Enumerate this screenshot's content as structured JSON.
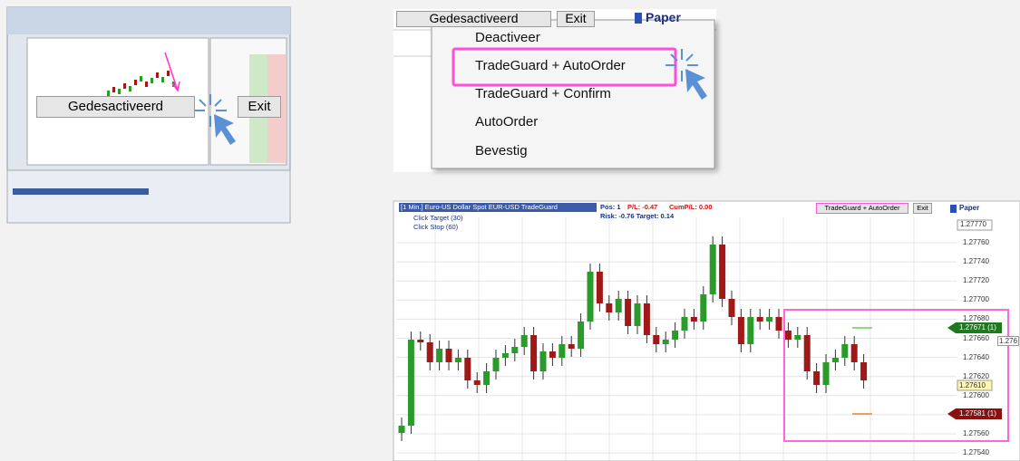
{
  "overview": {
    "button": "Gedesactiveerd",
    "exit": "Exit"
  },
  "menu": {
    "button": "Gedesactiveerd",
    "exit": "Exit",
    "account": "Paper",
    "items": [
      "Deactiveer",
      "TradeGuard + AutoOrder",
      "TradeGuard + Confirm",
      "AutoOrder",
      "Bevestig"
    ]
  },
  "chart": {
    "instrument": "[1 Min.] Euro-US Dollar Spot  EUR-USD TradeGuard",
    "pos": "Pos: 1",
    "pl": "P/L: -0.47",
    "cum": "CumP/L: 0.00",
    "risk": "Risk: -0.76  Target: 0.14",
    "click_target": "Click Target  (30)",
    "click_stop": "Click Stop  (60)",
    "mode": "TradeGuard + AutoOrder",
    "exit": "Exit",
    "account": "Paper",
    "price_axis": [
      "1.27770",
      "1.27760",
      "1.27740",
      "1.27720",
      "1.27700",
      "1.27680",
      "1.27660",
      "1.27640",
      "1.27620",
      "1.27600",
      "1.27580",
      "1.27560",
      "1.27540"
    ],
    "flags": {
      "position": "1.27671 (1)",
      "last": "1.27610",
      "stop": "1.27581 (1)",
      "cut": "1.276"
    }
  }
}
